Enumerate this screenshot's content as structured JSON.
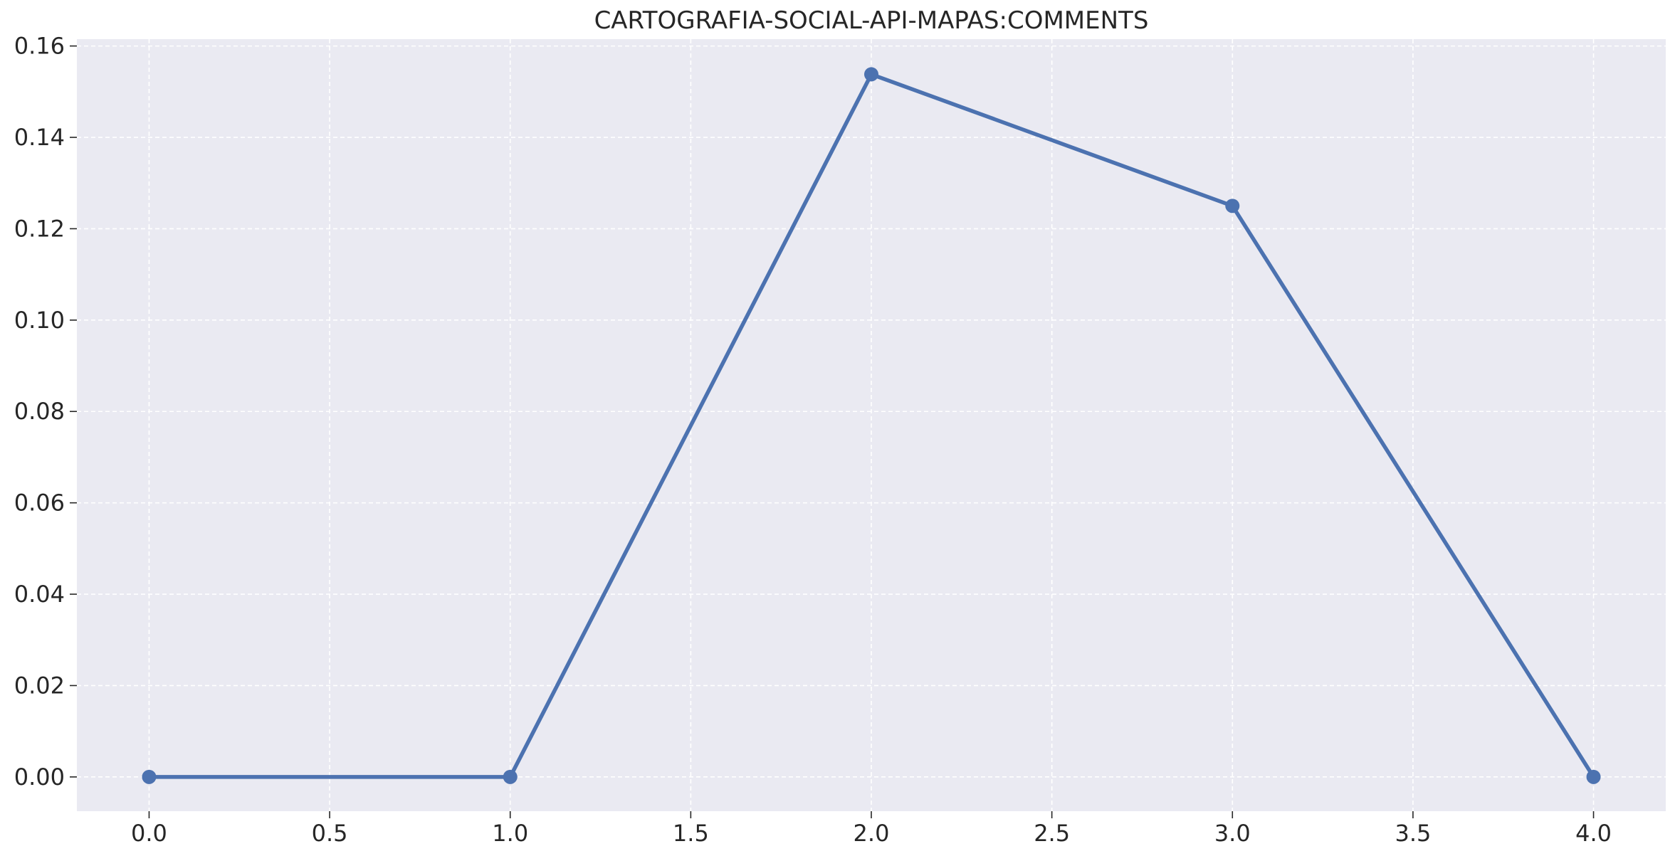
{
  "chart_data": {
    "type": "line",
    "title": "CARTOGRAFIA-SOCIAL-API-MAPAS:COMMENTS",
    "xlabel": "",
    "ylabel": "",
    "grid": true,
    "xlim": [
      -0.2,
      4.2
    ],
    "ylim": [
      -0.0075,
      0.1615
    ],
    "x_ticks": [
      0.0,
      0.5,
      1.0,
      1.5,
      2.0,
      2.5,
      3.0,
      3.5,
      4.0
    ],
    "x_tick_labels": [
      "0.0",
      "0.5",
      "1.0",
      "1.5",
      "2.0",
      "2.5",
      "3.0",
      "3.5",
      "4.0"
    ],
    "y_ticks": [
      0.0,
      0.02,
      0.04,
      0.06,
      0.08,
      0.1,
      0.12,
      0.14,
      0.16
    ],
    "y_tick_labels": [
      "0.00",
      "0.02",
      "0.04",
      "0.06",
      "0.08",
      "0.10",
      "0.12",
      "0.14",
      "0.16"
    ],
    "series": [
      {
        "name": "comments",
        "x": [
          0,
          1,
          2,
          3,
          4
        ],
        "values": [
          0.0,
          0.0,
          0.1538,
          0.125,
          0.0
        ],
        "color": "#4c72b0"
      }
    ],
    "background_color": "#eaeaf2",
    "grid_color": "#ffffff"
  }
}
